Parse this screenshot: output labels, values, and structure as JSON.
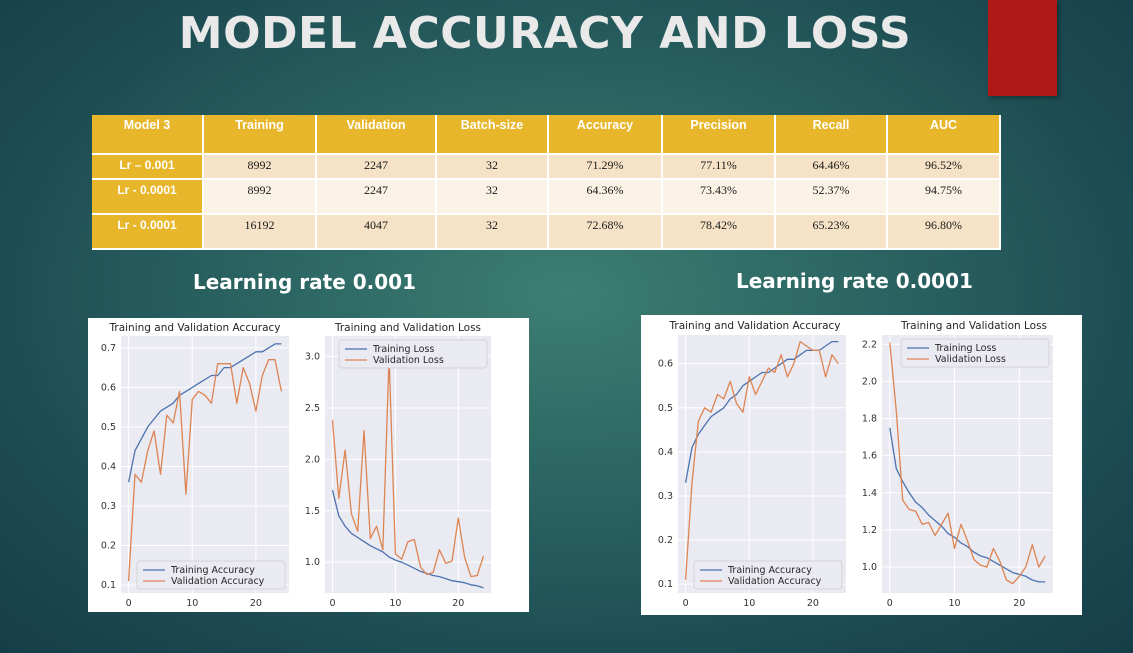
{
  "slide": {
    "title": "MODEL ACCURACY AND LOSS",
    "subheading_left": "Learning rate 0.001",
    "subheading_right": "Learning rate 0.0001",
    "colors": {
      "table_header": "#e7b62a",
      "accent_block": "#b01a16",
      "train_line": "#4c72b0",
      "val_line": "#dd8452"
    }
  },
  "table": {
    "headers": [
      "Model 3",
      "Training",
      "Validation",
      "Batch-size",
      "Accuracy",
      "Precision",
      "Recall",
      "AUC"
    ],
    "rows": [
      [
        "Lr – 0.001",
        "8992",
        "2247",
        "32",
        "71.29%",
        "77.11%",
        "64.46%",
        "96.52%"
      ],
      [
        "Lr - 0.0001",
        "8992",
        "2247",
        "32",
        "64.36%",
        "73.43%",
        "52.37%",
        "94.75%"
      ],
      [
        "Lr - 0.0001",
        "16192",
        "4047",
        "32",
        "72.68%",
        "78.42%",
        "65.23%",
        "96.80%"
      ]
    ]
  },
  "chart_data": [
    {
      "type": "line",
      "title": "Training and Validation Accuracy",
      "x": [
        0,
        1,
        2,
        3,
        4,
        5,
        6,
        7,
        8,
        9,
        10,
        11,
        12,
        13,
        14,
        15,
        16,
        17,
        18,
        19,
        20,
        21,
        22,
        23,
        24
      ],
      "xticks": [
        0,
        10,
        20
      ],
      "yticks": [
        0.1,
        0.2,
        0.3,
        0.4,
        0.5,
        0.6,
        0.7
      ],
      "ylim": [
        0.08,
        0.73
      ],
      "xlim": [
        -1.2,
        25.2
      ],
      "legend": "lower-right",
      "series": [
        {
          "name": "Training Accuracy",
          "values": [
            0.36,
            0.44,
            0.47,
            0.5,
            0.52,
            0.54,
            0.55,
            0.56,
            0.58,
            0.59,
            0.6,
            0.61,
            0.62,
            0.63,
            0.63,
            0.65,
            0.65,
            0.66,
            0.67,
            0.68,
            0.69,
            0.69,
            0.7,
            0.71,
            0.71
          ]
        },
        {
          "name": "Validation Accuracy",
          "values": [
            0.11,
            0.38,
            0.36,
            0.44,
            0.49,
            0.38,
            0.53,
            0.51,
            0.59,
            0.33,
            0.57,
            0.59,
            0.58,
            0.56,
            0.66,
            0.66,
            0.66,
            0.56,
            0.65,
            0.61,
            0.54,
            0.63,
            0.67,
            0.67,
            0.59
          ]
        }
      ]
    },
    {
      "type": "line",
      "title": "Training and Validation Loss",
      "x": [
        0,
        1,
        2,
        3,
        4,
        5,
        6,
        7,
        8,
        9,
        10,
        11,
        12,
        13,
        14,
        15,
        16,
        17,
        18,
        19,
        20,
        21,
        22,
        23,
        24
      ],
      "xticks": [
        0,
        10,
        20
      ],
      "yticks": [
        1.0,
        1.5,
        2.0,
        2.5,
        3.0
      ],
      "ylim": [
        0.7,
        3.2
      ],
      "xlim": [
        -1.2,
        25.2
      ],
      "legend": "top-right",
      "series": [
        {
          "name": "Training Loss",
          "values": [
            1.7,
            1.45,
            1.35,
            1.28,
            1.24,
            1.2,
            1.16,
            1.13,
            1.1,
            1.05,
            1.02,
            1.0,
            0.97,
            0.94,
            0.91,
            0.89,
            0.87,
            0.86,
            0.84,
            0.82,
            0.81,
            0.8,
            0.78,
            0.77,
            0.75
          ]
        },
        {
          "name": "Validation Loss",
          "values": [
            2.38,
            1.62,
            2.09,
            1.47,
            1.3,
            2.28,
            1.23,
            1.35,
            1.12,
            3.0,
            1.08,
            1.03,
            1.2,
            1.22,
            0.95,
            0.88,
            0.9,
            1.12,
            0.99,
            1.01,
            1.43,
            1.05,
            0.86,
            0.87,
            1.06
          ]
        }
      ]
    },
    {
      "type": "line",
      "title": "Training and Validation Accuracy",
      "x": [
        0,
        1,
        2,
        3,
        4,
        5,
        6,
        7,
        8,
        9,
        10,
        11,
        12,
        13,
        14,
        15,
        16,
        17,
        18,
        19,
        20,
        21,
        22,
        23,
        24
      ],
      "xticks": [
        0,
        10,
        20
      ],
      "yticks": [
        0.1,
        0.2,
        0.3,
        0.4,
        0.5,
        0.6
      ],
      "ylim": [
        0.08,
        0.665
      ],
      "xlim": [
        -1.2,
        25.2
      ],
      "legend": "lower-right",
      "series": [
        {
          "name": "Training Accuracy",
          "values": [
            0.33,
            0.41,
            0.44,
            0.46,
            0.48,
            0.49,
            0.5,
            0.52,
            0.53,
            0.55,
            0.56,
            0.57,
            0.58,
            0.58,
            0.59,
            0.6,
            0.61,
            0.61,
            0.62,
            0.63,
            0.63,
            0.63,
            0.64,
            0.65,
            0.65
          ]
        },
        {
          "name": "Validation Accuracy",
          "values": [
            0.11,
            0.33,
            0.47,
            0.5,
            0.49,
            0.53,
            0.52,
            0.56,
            0.51,
            0.49,
            0.57,
            0.53,
            0.56,
            0.59,
            0.58,
            0.62,
            0.57,
            0.6,
            0.65,
            0.64,
            0.63,
            0.63,
            0.57,
            0.62,
            0.6
          ]
        }
      ]
    },
    {
      "type": "line",
      "title": "Training and Validation Loss",
      "x": [
        0,
        1,
        2,
        3,
        4,
        5,
        6,
        7,
        8,
        9,
        10,
        11,
        12,
        13,
        14,
        15,
        16,
        17,
        18,
        19,
        20,
        21,
        22,
        23,
        24
      ],
      "xticks": [
        0,
        10,
        20
      ],
      "yticks": [
        1.0,
        1.2,
        1.4,
        1.6,
        1.8,
        2.0,
        2.2
      ],
      "ylim": [
        0.86,
        2.25
      ],
      "xlim": [
        -1.2,
        25.2
      ],
      "legend": "top-right",
      "series": [
        {
          "name": "Training Loss",
          "values": [
            1.75,
            1.53,
            1.46,
            1.4,
            1.35,
            1.32,
            1.28,
            1.25,
            1.22,
            1.18,
            1.16,
            1.13,
            1.11,
            1.08,
            1.06,
            1.05,
            1.03,
            1.01,
            0.99,
            0.97,
            0.96,
            0.95,
            0.93,
            0.92,
            0.92
          ]
        },
        {
          "name": "Validation Loss",
          "values": [
            2.21,
            1.84,
            1.36,
            1.31,
            1.3,
            1.23,
            1.24,
            1.17,
            1.23,
            1.29,
            1.1,
            1.23,
            1.14,
            1.04,
            1.01,
            1.0,
            1.1,
            1.03,
            0.93,
            0.91,
            0.95,
            1.0,
            1.12,
            1.0,
            1.06
          ]
        }
      ]
    }
  ]
}
